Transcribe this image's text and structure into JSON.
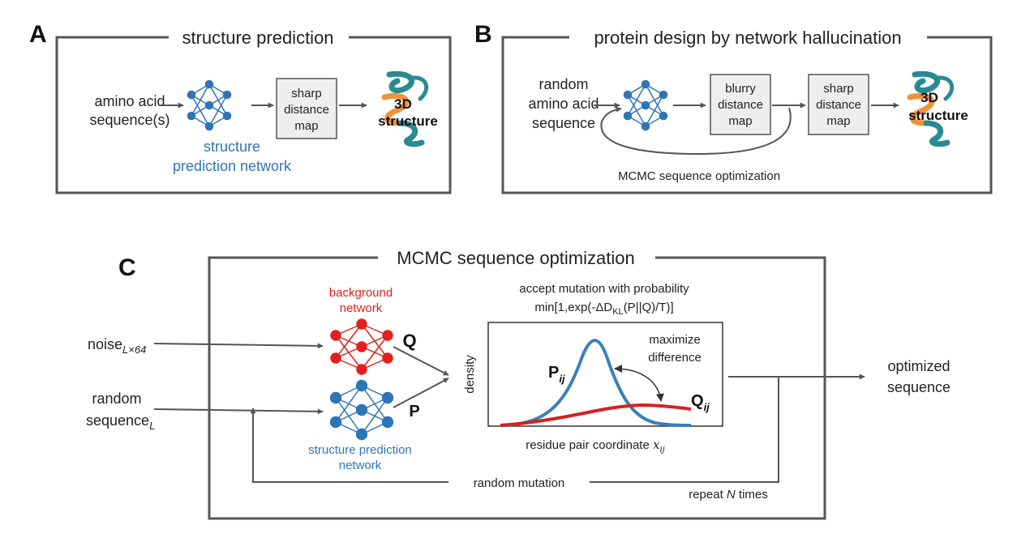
{
  "colors": {
    "frame": "#555555",
    "arrow": "#555555",
    "box_fill": "#eeeeee",
    "box_stroke": "#555555",
    "blue_network": "#2e75b6",
    "red_network": "#e0201b",
    "curve_p": "#3a80b8",
    "curve_q": "#d42020",
    "helix_teal": "#2a8a92",
    "helix_orange": "#f0923a"
  },
  "panel_a": {
    "letter": "A",
    "title": "structure prediction",
    "input_line1": "amino acid",
    "input_line2": "sequence(s)",
    "network_label_line1": "structure",
    "network_label_line2": "prediction network",
    "map_line1": "sharp",
    "map_line2": "distance",
    "map_line3": "map",
    "structure_line1": "3D",
    "structure_line2": "structure",
    "network_icon": "neural-network-icon",
    "structure_icon": "protein-helix-icon"
  },
  "panel_b": {
    "letter": "B",
    "title": "protein design by network hallucination",
    "input_line1": "random",
    "input_line2": "amino acid",
    "input_line3": "sequence",
    "blurry_line1": "blurry",
    "blurry_line2": "distance",
    "blurry_line3": "map",
    "sharp_line1": "sharp",
    "sharp_line2": "distance",
    "sharp_line3": "map",
    "structure_line1": "3D",
    "structure_line2": "structure",
    "loop_label": "MCMC sequence optimization",
    "network_icon": "neural-network-icon",
    "structure_icon": "protein-helix-icon"
  },
  "panel_c": {
    "letter": "C",
    "title": "MCMC sequence optimization",
    "noise_label": "noise",
    "noise_sub": "L×64",
    "random_line1": "random",
    "random_line2": "sequence",
    "random_sub": "L",
    "bg_net_line1": "background",
    "bg_net_line2": "network",
    "q_label": "Q",
    "p_label": "P",
    "struct_net_line1": "structure prediction",
    "struct_net_line2": "network",
    "accept_line1": "accept mutation with probability",
    "accept_line2_pre": "min[1,exp(-ΔD",
    "accept_line2_sub": "KL",
    "accept_line2_post": "(P||Q)/T)]",
    "plot_ylabel": "density",
    "plot_xlabel": "residue pair coordinate",
    "plot_xvar": "x",
    "plot_xvar_sub": "ij",
    "pij_label": "P",
    "pij_sub": "ij",
    "qij_label": "Q",
    "qij_sub": "ij",
    "maximize_line1": "maximize",
    "maximize_line2": "difference",
    "output_line1": "optimized",
    "output_line2": "sequence",
    "mutation_label": "random mutation",
    "repeat_pre": "repeat ",
    "repeat_n": "N",
    "repeat_post": " times"
  }
}
